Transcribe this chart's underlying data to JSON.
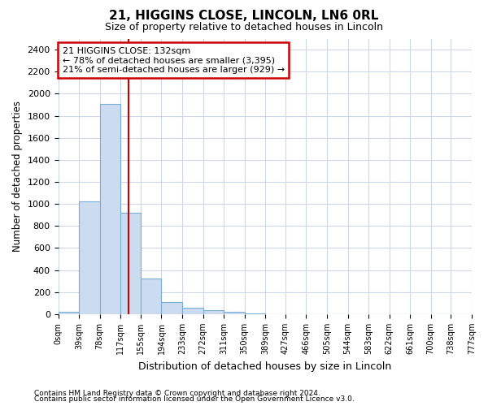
{
  "title": "21, HIGGINS CLOSE, LINCOLN, LN6 0RL",
  "subtitle": "Size of property relative to detached houses in Lincoln",
  "xlabel": "Distribution of detached houses by size in Lincoln",
  "ylabel": "Number of detached properties",
  "bar_color": "#ccdcf0",
  "bar_edge_color": "#7aadd4",
  "vline_x": 132,
  "vline_color": "#cc0000",
  "annotation_title": "21 HIGGINS CLOSE: 132sqm",
  "annotation_line1": "← 78% of detached houses are smaller (3,395)",
  "annotation_line2": "21% of semi-detached houses are larger (929) →",
  "bin_edges": [
    0,
    39,
    78,
    117,
    155,
    194,
    233,
    272,
    311,
    350,
    389,
    427,
    466,
    505,
    544,
    583,
    622,
    661,
    700,
    738,
    777
  ],
  "bar_heights": [
    20,
    1025,
    1905,
    920,
    320,
    110,
    55,
    35,
    20,
    5,
    0,
    0,
    0,
    0,
    0,
    0,
    0,
    0,
    0,
    0
  ],
  "ylim": [
    0,
    2500
  ],
  "yticks": [
    0,
    200,
    400,
    600,
    800,
    1000,
    1200,
    1400,
    1600,
    1800,
    2000,
    2200,
    2400
  ],
  "footnote1": "Contains HM Land Registry data © Crown copyright and database right 2024.",
  "footnote2": "Contains public sector information licensed under the Open Government Licence v3.0.",
  "bg_color": "#ffffff",
  "plot_bg_color": "#ffffff",
  "grid_color": "#d0d8e8"
}
